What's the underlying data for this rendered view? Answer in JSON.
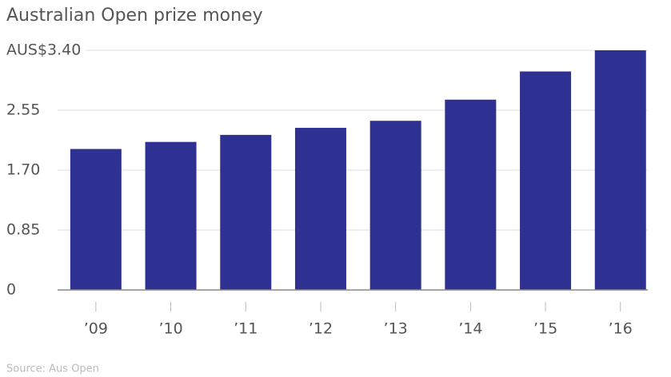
{
  "chart_data": {
    "type": "bar",
    "title": "Australian Open prize money",
    "categories": [
      "’09",
      "’10",
      "’11",
      "’12",
      "’13",
      "’14",
      "’15",
      "’16"
    ],
    "values": [
      2.0,
      2.1,
      2.2,
      2.3,
      2.4,
      2.7,
      3.1,
      3.4
    ],
    "color": "#2e3192",
    "ylim": [
      0,
      3.4
    ],
    "yticks": [
      0,
      0.85,
      {
        "value": 1.7,
        "label": "1.70"
      },
      2.55,
      {
        "value": 3.4,
        "label": "AUS$3.40"
      }
    ],
    "grid": true,
    "source": "Source: Aus Open"
  }
}
